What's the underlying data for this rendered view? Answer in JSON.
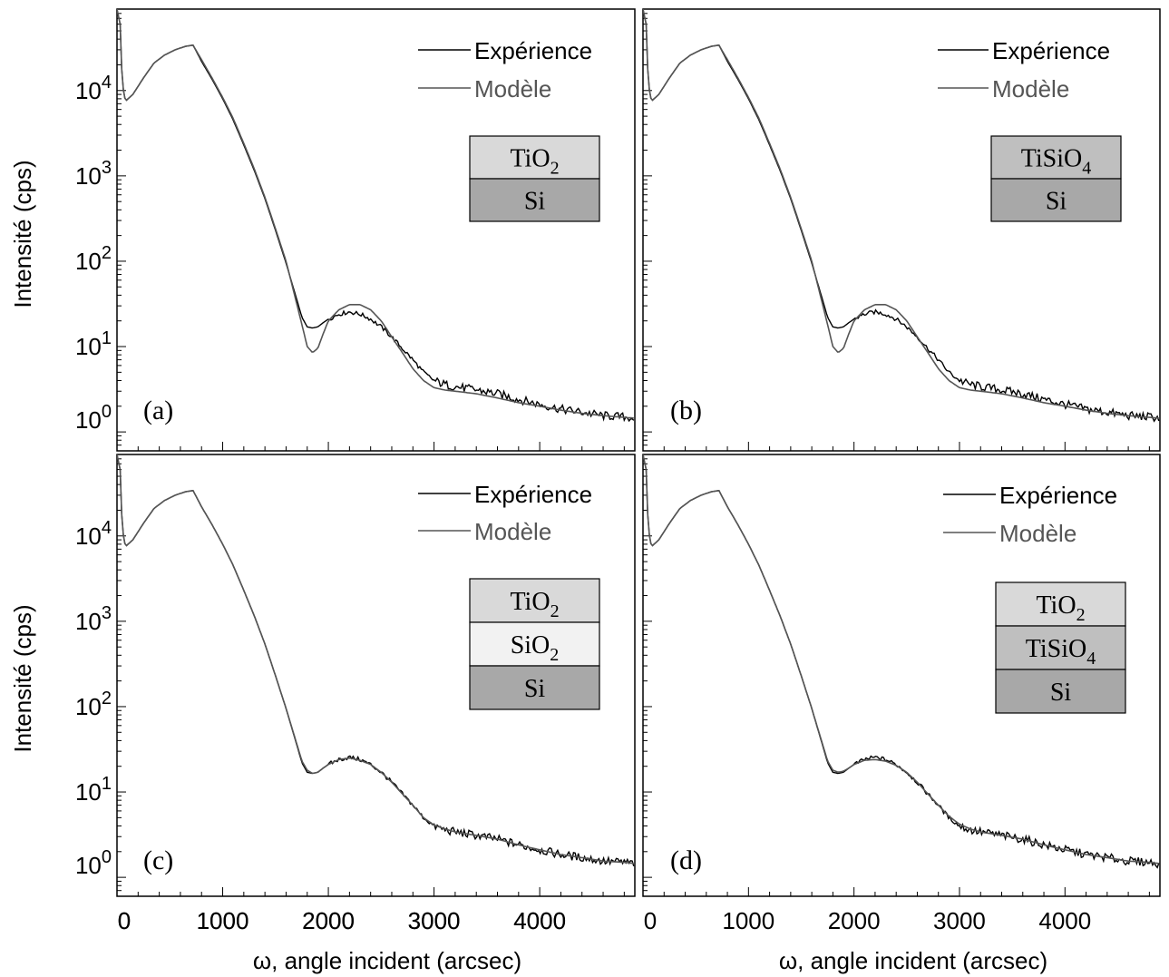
{
  "figure": {
    "ylabel": "Intensité (cps)",
    "xlabel": "ω, angle incident (arcsec)",
    "legend_experience": "Expérience",
    "legend_model": "Modèle",
    "colors": {
      "experience": "#000000",
      "model": "#555555",
      "legend_model_text": "#555555"
    }
  },
  "chart_data": [
    {
      "type": "line",
      "panel_label": "(a)",
      "yscale": "log",
      "xlim": [
        0,
        4900
      ],
      "ylim": [
        0.6,
        90000
      ],
      "x_ticks": [
        0,
        1000,
        2000,
        3000,
        4000
      ],
      "y_ticks": [
        {
          "base": "10",
          "exp": "0"
        },
        {
          "base": "10",
          "exp": "1"
        },
        {
          "base": "10",
          "exp": "2"
        },
        {
          "base": "10",
          "exp": "3"
        },
        {
          "base": "10",
          "exp": "4"
        }
      ],
      "stack": [
        {
          "text": "TiO",
          "sub": "2",
          "fill": "#d9d9d9"
        },
        {
          "text": "Si",
          "sub": "",
          "fill": "#a8a8a8"
        }
      ],
      "series": [
        {
          "name": "Expérience",
          "x": [
            0,
            30,
            50,
            80,
            150,
            250,
            350,
            450,
            550,
            650,
            720,
            800,
            900,
            1000,
            1100,
            1200,
            1300,
            1400,
            1500,
            1600,
            1700,
            1750,
            1800,
            1850,
            1900,
            1950,
            2000,
            2100,
            2200,
            2300,
            2400,
            2500,
            2600,
            2700,
            2800,
            2900,
            3000,
            3100,
            3200,
            3400,
            3600,
            3800,
            4000,
            4200,
            4400,
            4600,
            4800,
            4900
          ],
          "y": [
            90000,
            60000,
            12000,
            7500,
            9000,
            14000,
            21000,
            26000,
            30000,
            33000,
            34000,
            22000,
            13500,
            8000,
            4500,
            2300,
            1150,
            540,
            230,
            95,
            36,
            22,
            17,
            16.5,
            17,
            19,
            21,
            24,
            25.5,
            24,
            21,
            17,
            13,
            9.5,
            7,
            5,
            4,
            3.6,
            3.4,
            3.1,
            2.8,
            2.4,
            2.1,
            1.85,
            1.7,
            1.55,
            1.5,
            1.45
          ]
        },
        {
          "name": "Modèle",
          "x": [
            0,
            30,
            50,
            80,
            150,
            250,
            350,
            450,
            550,
            650,
            720,
            800,
            900,
            1000,
            1100,
            1200,
            1300,
            1400,
            1500,
            1600,
            1700,
            1750,
            1800,
            1850,
            1900,
            1950,
            2000,
            2100,
            2200,
            2300,
            2400,
            2500,
            2600,
            2700,
            2800,
            2900,
            3000,
            3100,
            3200,
            3400,
            3600,
            3800,
            4000,
            4200,
            4400,
            4600,
            4800,
            4900
          ],
          "y": [
            90000,
            60000,
            12000,
            7500,
            9000,
            14000,
            21000,
            26000,
            30000,
            33000,
            34000,
            23000,
            14000,
            8300,
            4700,
            2400,
            1200,
            560,
            240,
            100,
            32,
            18,
            10,
            8.5,
            9.5,
            14,
            20,
            27,
            31,
            31,
            27,
            20,
            13,
            8.5,
            5.5,
            4,
            3.3,
            3.1,
            3.0,
            2.8,
            2.5,
            2.2,
            2.0,
            1.8,
            1.65,
            1.55,
            1.48,
            1.45
          ]
        }
      ]
    },
    {
      "type": "line",
      "panel_label": "(b)",
      "yscale": "log",
      "xlim": [
        0,
        4900
      ],
      "ylim": [
        0.6,
        90000
      ],
      "x_ticks": [],
      "y_ticks": [],
      "stack": [
        {
          "text": "TiSiO",
          "sub": "4",
          "fill": "#bfbfbf"
        },
        {
          "text": "Si",
          "sub": "",
          "fill": "#a8a8a8"
        }
      ],
      "series": [
        {
          "name": "Expérience",
          "x": [
            0,
            30,
            50,
            80,
            150,
            250,
            350,
            450,
            550,
            650,
            720,
            800,
            900,
            1000,
            1100,
            1200,
            1300,
            1400,
            1500,
            1600,
            1700,
            1750,
            1800,
            1850,
            1900,
            1950,
            2000,
            2100,
            2200,
            2300,
            2400,
            2500,
            2600,
            2700,
            2800,
            2900,
            3000,
            3100,
            3200,
            3400,
            3600,
            3800,
            4000,
            4200,
            4400,
            4600,
            4800,
            4900
          ],
          "y": [
            90000,
            60000,
            12000,
            7500,
            9000,
            14000,
            21000,
            26000,
            30000,
            33000,
            34000,
            22000,
            13500,
            8000,
            4500,
            2300,
            1150,
            540,
            230,
            95,
            36,
            22,
            17,
            16.5,
            17,
            19,
            21,
            24,
            25.5,
            24,
            21,
            17,
            13,
            9.5,
            7,
            5,
            4,
            3.6,
            3.4,
            3.1,
            2.8,
            2.4,
            2.1,
            1.85,
            1.7,
            1.55,
            1.5,
            1.45
          ]
        },
        {
          "name": "Modèle",
          "x": [
            0,
            30,
            50,
            80,
            150,
            250,
            350,
            450,
            550,
            650,
            720,
            800,
            900,
            1000,
            1100,
            1200,
            1300,
            1400,
            1500,
            1600,
            1700,
            1750,
            1800,
            1850,
            1900,
            1950,
            2000,
            2100,
            2200,
            2300,
            2400,
            2500,
            2600,
            2700,
            2800,
            2900,
            3000,
            3100,
            3200,
            3400,
            3600,
            3800,
            4000,
            4200,
            4400,
            4600,
            4800,
            4900
          ],
          "y": [
            90000,
            60000,
            12000,
            7500,
            9000,
            14000,
            21000,
            26000,
            30000,
            33000,
            34000,
            23000,
            14000,
            8300,
            4700,
            2400,
            1200,
            560,
            240,
            100,
            32,
            18,
            10,
            8.5,
            9.5,
            14,
            20,
            27,
            31,
            31,
            27,
            20,
            13,
            8.5,
            5.5,
            4,
            3.3,
            3.1,
            3.0,
            2.8,
            2.5,
            2.2,
            2.0,
            1.8,
            1.65,
            1.55,
            1.48,
            1.45
          ]
        }
      ]
    },
    {
      "type": "line",
      "panel_label": "(c)",
      "yscale": "log",
      "xlim": [
        0,
        4900
      ],
      "ylim": [
        0.6,
        90000
      ],
      "x_ticks": [
        0,
        1000,
        2000,
        3000,
        4000
      ],
      "y_ticks": [
        {
          "base": "10",
          "exp": "0"
        },
        {
          "base": "10",
          "exp": "1"
        },
        {
          "base": "10",
          "exp": "2"
        },
        {
          "base": "10",
          "exp": "3"
        },
        {
          "base": "10",
          "exp": "4"
        }
      ],
      "stack": [
        {
          "text": "TiO",
          "sub": "2",
          "fill": "#d9d9d9"
        },
        {
          "text": "SiO",
          "sub": "2",
          "fill": "#f2f2f2"
        },
        {
          "text": "Si",
          "sub": "",
          "fill": "#a8a8a8"
        }
      ],
      "series": [
        {
          "name": "Expérience",
          "x": [
            0,
            30,
            50,
            80,
            150,
            250,
            350,
            450,
            550,
            650,
            720,
            800,
            900,
            1000,
            1100,
            1200,
            1300,
            1400,
            1500,
            1600,
            1700,
            1750,
            1800,
            1850,
            1900,
            1950,
            2000,
            2100,
            2200,
            2300,
            2400,
            2500,
            2600,
            2700,
            2800,
            2900,
            3000,
            3100,
            3200,
            3400,
            3600,
            3800,
            4000,
            4200,
            4400,
            4600,
            4800,
            4900
          ],
          "y": [
            90000,
            60000,
            12000,
            7500,
            9000,
            14000,
            21000,
            26000,
            30000,
            33000,
            34000,
            22000,
            13500,
            8000,
            4500,
            2300,
            1150,
            540,
            230,
            95,
            36,
            22,
            17,
            16.5,
            17,
            19,
            21,
            24,
            25.5,
            24,
            21,
            17,
            13,
            9.5,
            7,
            5,
            4,
            3.6,
            3.4,
            3.1,
            2.8,
            2.4,
            2.1,
            1.85,
            1.7,
            1.55,
            1.5,
            1.45
          ]
        },
        {
          "name": "Modèle",
          "x": [
            0,
            30,
            50,
            80,
            150,
            250,
            350,
            450,
            550,
            650,
            720,
            800,
            900,
            1000,
            1100,
            1200,
            1300,
            1400,
            1500,
            1600,
            1700,
            1750,
            1800,
            1850,
            1900,
            1950,
            2000,
            2100,
            2200,
            2300,
            2400,
            2500,
            2600,
            2700,
            2800,
            2900,
            3000,
            3100,
            3200,
            3400,
            3600,
            3800,
            4000,
            4200,
            4400,
            4600,
            4800,
            4900
          ],
          "y": [
            90000,
            60000,
            12000,
            7500,
            9000,
            14000,
            21000,
            26000,
            30000,
            33000,
            34000,
            22000,
            13500,
            8000,
            4500,
            2300,
            1150,
            540,
            230,
            95,
            37,
            23,
            18,
            16.5,
            17,
            19,
            21,
            24,
            25,
            23.5,
            21,
            17,
            13,
            9.5,
            7,
            5,
            4.1,
            3.7,
            3.4,
            3.1,
            2.8,
            2.4,
            2.1,
            1.85,
            1.7,
            1.55,
            1.5,
            1.45
          ]
        }
      ]
    },
    {
      "type": "line",
      "panel_label": "(d)",
      "yscale": "log",
      "xlim": [
        0,
        4900
      ],
      "ylim": [
        0.6,
        90000
      ],
      "x_ticks": [
        0,
        1000,
        2000,
        3000,
        4000
      ],
      "y_ticks": [],
      "stack": [
        {
          "text": "TiO",
          "sub": "2",
          "fill": "#d9d9d9"
        },
        {
          "text": "TiSiO",
          "sub": "4",
          "fill": "#bfbfbf"
        },
        {
          "text": "Si",
          "sub": "",
          "fill": "#a8a8a8"
        }
      ],
      "series": [
        {
          "name": "Expérience",
          "x": [
            0,
            30,
            50,
            80,
            150,
            250,
            350,
            450,
            550,
            650,
            720,
            800,
            900,
            1000,
            1100,
            1200,
            1300,
            1400,
            1500,
            1600,
            1700,
            1750,
            1800,
            1850,
            1900,
            1950,
            2000,
            2100,
            2200,
            2300,
            2400,
            2500,
            2600,
            2700,
            2800,
            2900,
            3000,
            3100,
            3200,
            3400,
            3600,
            3800,
            4000,
            4200,
            4400,
            4600,
            4800,
            4900
          ],
          "y": [
            90000,
            60000,
            12000,
            7500,
            9000,
            14000,
            21000,
            26000,
            30000,
            33000,
            34000,
            22000,
            13500,
            8000,
            4500,
            2300,
            1150,
            540,
            230,
            95,
            36,
            22,
            17,
            16.5,
            17,
            19,
            21,
            24,
            25.5,
            24,
            21,
            17,
            13,
            9.5,
            7,
            5,
            4,
            3.6,
            3.4,
            3.1,
            2.8,
            2.4,
            2.1,
            1.85,
            1.7,
            1.55,
            1.5,
            1.45
          ]
        },
        {
          "name": "Modèle",
          "x": [
            0,
            30,
            50,
            80,
            150,
            250,
            350,
            450,
            550,
            650,
            720,
            800,
            900,
            1000,
            1100,
            1200,
            1300,
            1400,
            1500,
            1600,
            1700,
            1750,
            1800,
            1850,
            1900,
            1950,
            2000,
            2100,
            2200,
            2300,
            2400,
            2500,
            2600,
            2700,
            2800,
            2900,
            3000,
            3100,
            3200,
            3400,
            3600,
            3800,
            4000,
            4200,
            4400,
            4600,
            4800,
            4900
          ],
          "y": [
            90000,
            60000,
            12000,
            7500,
            9000,
            14000,
            21000,
            26000,
            30000,
            33000,
            34000,
            22000,
            13500,
            8000,
            4500,
            2300,
            1150,
            540,
            230,
            95,
            37,
            23,
            18,
            17,
            17.5,
            19,
            21,
            23.5,
            24,
            23,
            20.5,
            17,
            13,
            9.5,
            7,
            5.2,
            4.2,
            3.7,
            3.4,
            3.1,
            2.8,
            2.4,
            2.1,
            1.85,
            1.7,
            1.55,
            1.5,
            1.45
          ]
        }
      ]
    }
  ]
}
